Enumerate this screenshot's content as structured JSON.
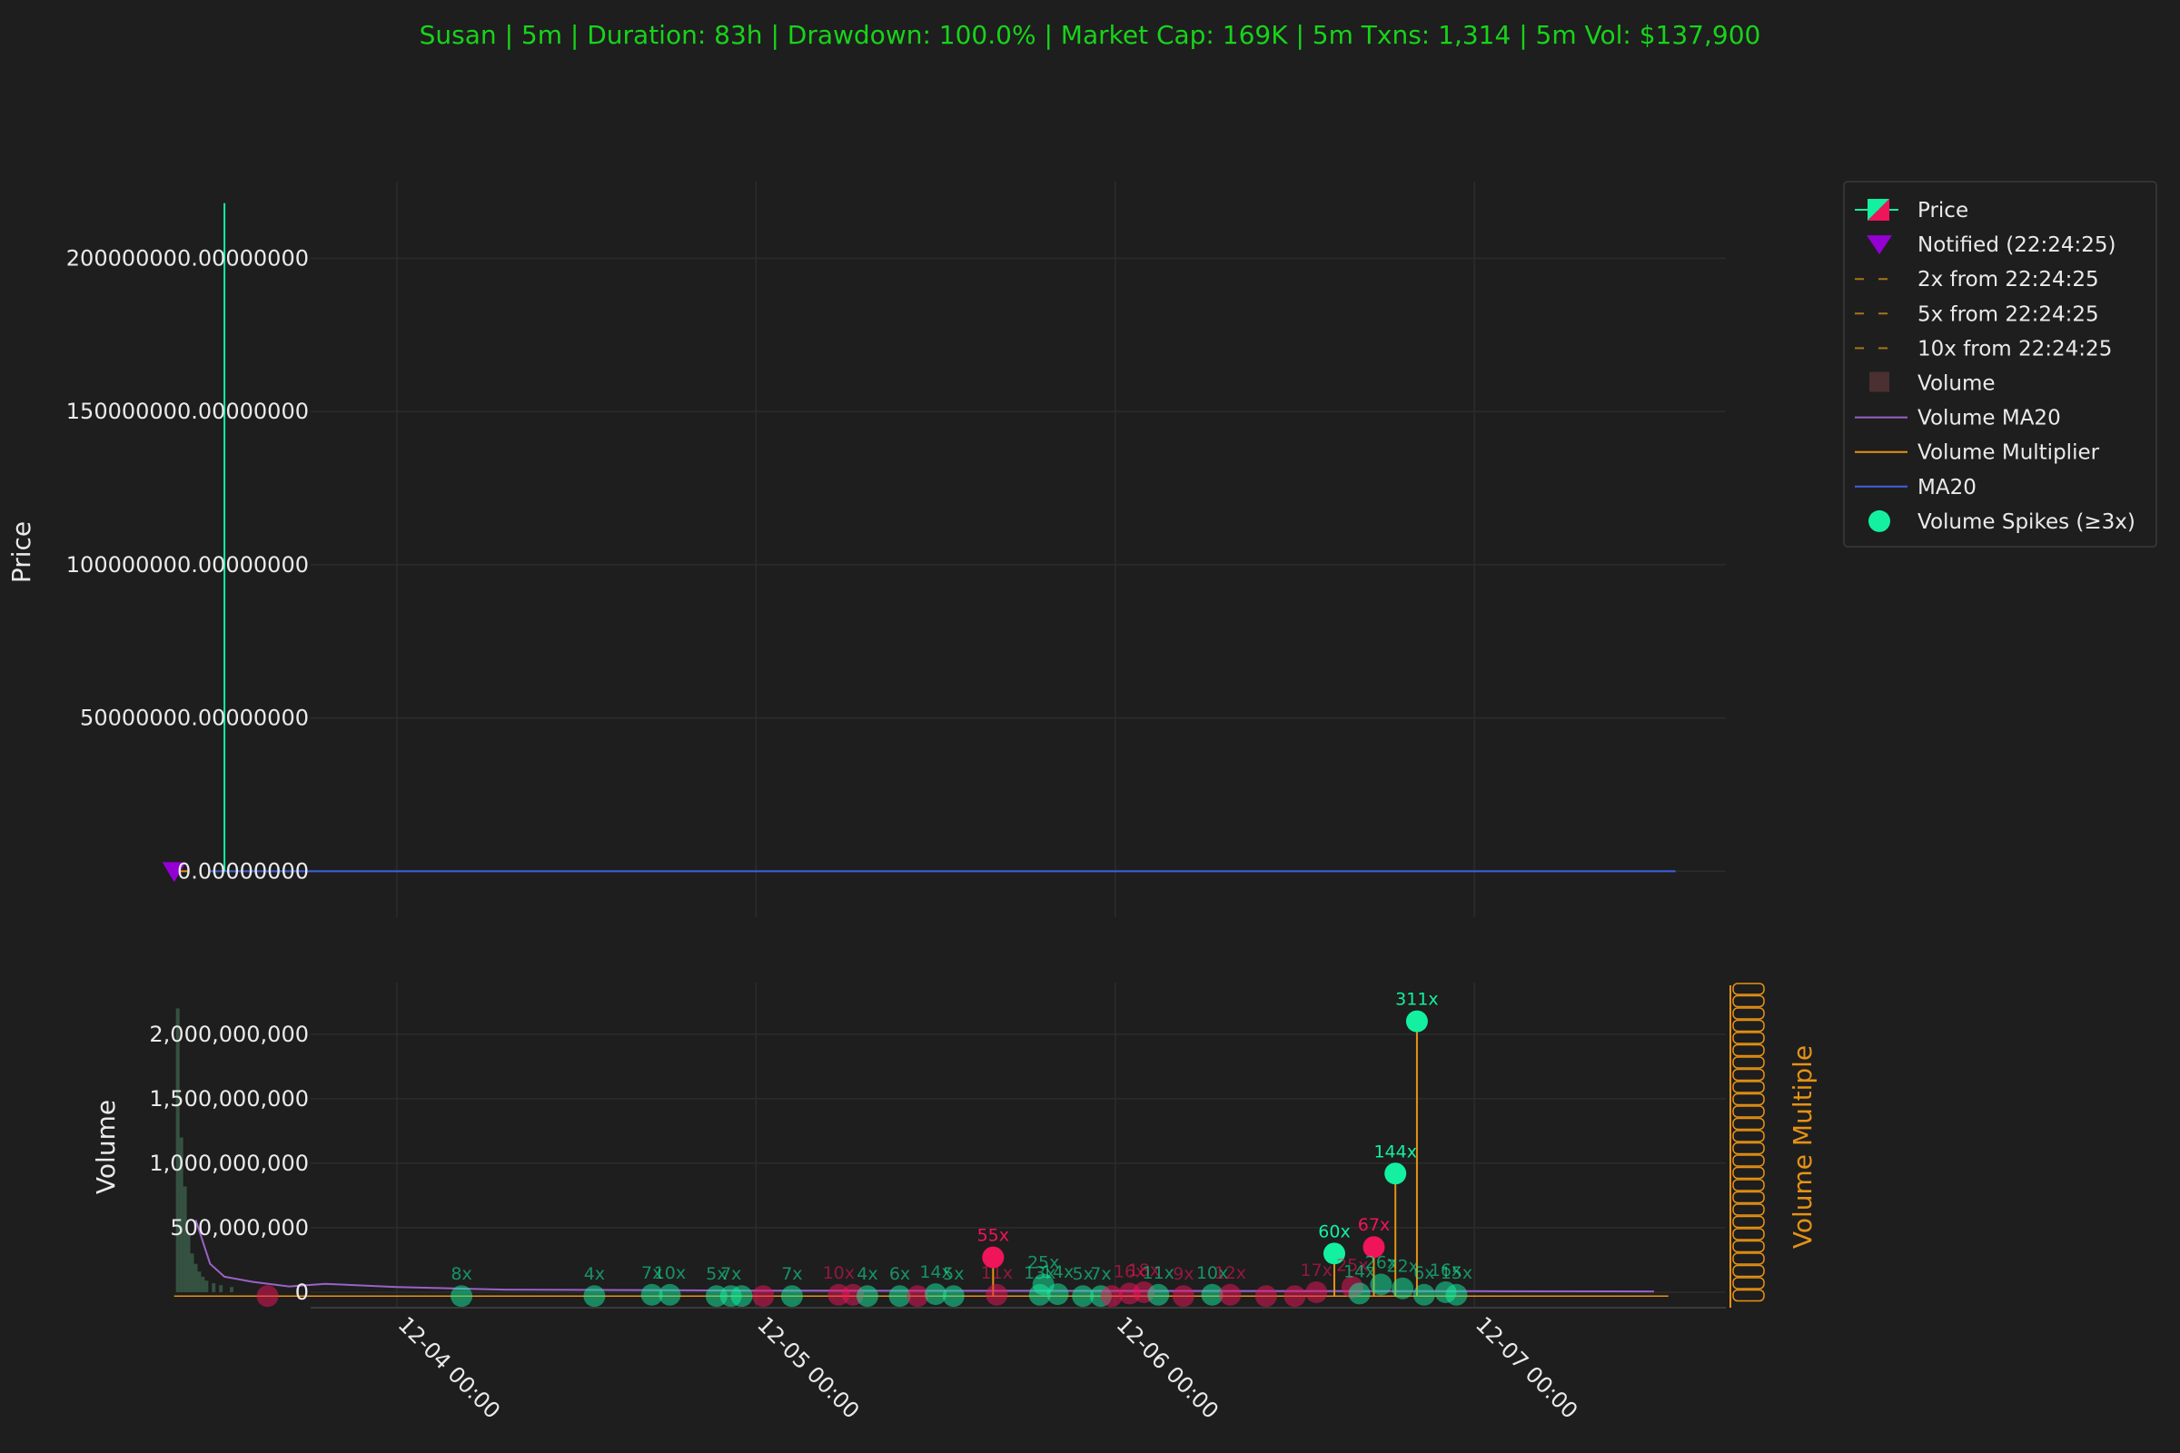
{
  "title": "Susan | 5m | Duration: 83h | Drawdown: 100.0% | Market Cap: 169K | 5m Txns: 1,314 | 5m Vol: $137,900",
  "colors": {
    "background": "#1e1e1e",
    "title": "#18d31a",
    "up": "#13f0a0",
    "down": "#f0145a",
    "ma20": "#4060e0",
    "volume_ma20": "#9a62c8",
    "volume_multiplier": "#e69215",
    "notified": "#9400d3",
    "grid": "#2c2c2c"
  },
  "legend": [
    {
      "label": "Price",
      "icon": "candle-icon"
    },
    {
      "label": "Notified (22:24:25)",
      "icon": "triangle-down-icon"
    },
    {
      "label": "2x from 22:24:25",
      "icon": "dashed-line-icon"
    },
    {
      "label": "5x from 22:24:25",
      "icon": "dashed-line-icon"
    },
    {
      "label": "10x from 22:24:25",
      "icon": "dashed-line-icon"
    },
    {
      "label": "Volume",
      "icon": "square-icon"
    },
    {
      "label": "Volume MA20",
      "icon": "line-icon"
    },
    {
      "label": "Volume Multiplier",
      "icon": "line-icon"
    },
    {
      "label": "MA20",
      "icon": "line-icon"
    },
    {
      "label": "Volume Spikes (≥3x)",
      "icon": "circle-icon"
    }
  ],
  "chart_data": [
    {
      "type": "line",
      "panel": "price",
      "ylabel": "Price",
      "ylim": [
        -15000000,
        225000000
      ],
      "y_ticks": [
        {
          "value": 0,
          "label": "0.00000000"
        },
        {
          "value": 50000000,
          "label": "50000000.00000000"
        },
        {
          "value": 100000000,
          "label": "100000000.00000000"
        },
        {
          "value": 150000000,
          "label": "150000000.00000000"
        },
        {
          "value": 200000000,
          "label": "200000000.00000000"
        }
      ],
      "xlim": [
        -0.24,
        3.7
      ],
      "x_axis": "days after 12-04 00:00",
      "grid": true,
      "price_spike": {
        "x": -0.48,
        "high": 218000000,
        "low": 0
      },
      "ma20": {
        "x_start": -0.52,
        "x_end": 3.56,
        "value": 0
      },
      "notified": {
        "x": -0.62,
        "y": 0,
        "label": "Notified (22:24:25)"
      }
    },
    {
      "type": "bar",
      "panel": "volume",
      "ylabel": "Volume",
      "y2label": "Volume Multiple",
      "ylim": [
        -120000000,
        2400000000
      ],
      "y_ticks": [
        {
          "value": 0,
          "label": "0"
        },
        {
          "value": 500000000,
          "label": "500,000,000"
        },
        {
          "value": 1000000000,
          "label": "1,000,000,000"
        },
        {
          "value": 1500000000,
          "label": "1,500,000,000"
        },
        {
          "value": 2000000000,
          "label": "2,000,000,000"
        }
      ],
      "x_ticks": [
        {
          "value": 0,
          "label": "12-04 00:00"
        },
        {
          "value": 1,
          "label": "12-05 00:00"
        },
        {
          "value": 2,
          "label": "12-06 00:00"
        },
        {
          "value": 3,
          "label": "12-07 00:00"
        }
      ],
      "early_volume": [
        {
          "x": -0.61,
          "v": 2200000000
        },
        {
          "x": -0.6,
          "v": 1200000000
        },
        {
          "x": -0.59,
          "v": 820000000
        },
        {
          "x": -0.58,
          "v": 450000000
        },
        {
          "x": -0.57,
          "v": 300000000
        },
        {
          "x": -0.56,
          "v": 220000000
        },
        {
          "x": -0.55,
          "v": 160000000
        },
        {
          "x": -0.54,
          "v": 120000000
        },
        {
          "x": -0.53,
          "v": 90000000
        },
        {
          "x": -0.51,
          "v": 70000000
        },
        {
          "x": -0.49,
          "v": 55000000
        },
        {
          "x": -0.46,
          "v": 40000000
        }
      ],
      "volume_ma20": [
        {
          "x": -0.56,
          "v": 560000000
        },
        {
          "x": -0.52,
          "v": 220000000
        },
        {
          "x": -0.48,
          "v": 120000000
        },
        {
          "x": -0.4,
          "v": 80000000
        },
        {
          "x": -0.3,
          "v": 45000000
        },
        {
          "x": -0.2,
          "v": 65000000
        },
        {
          "x": 0,
          "v": 40000000
        },
        {
          "x": 0.3,
          "v": 20000000
        },
        {
          "x": 1.0,
          "v": 12000000
        },
        {
          "x": 2.0,
          "v": 10000000
        },
        {
          "x": 3.0,
          "v": 8000000
        },
        {
          "x": 3.5,
          "v": 6000000
        }
      ],
      "spikes": [
        {
          "x": -0.36,
          "v": -30000000,
          "dir": "down",
          "label": ""
        },
        {
          "x": 0.18,
          "v": -30000000,
          "dir": "up",
          "label": "8x"
        },
        {
          "x": 0.55,
          "v": -30000000,
          "dir": "up",
          "label": "4x"
        },
        {
          "x": 0.71,
          "v": -20000000,
          "dir": "up",
          "label": "7x"
        },
        {
          "x": 0.76,
          "v": -20000000,
          "dir": "up",
          "label": "10x"
        },
        {
          "x": 0.89,
          "v": -30000000,
          "dir": "up",
          "label": "5x"
        },
        {
          "x": 0.93,
          "v": -30000000,
          "dir": "up",
          "label": "7x"
        },
        {
          "x": 0.96,
          "v": -30000000,
          "dir": "up",
          "label": ""
        },
        {
          "x": 1.02,
          "v": -30000000,
          "dir": "down",
          "label": ""
        },
        {
          "x": 1.1,
          "v": -30000000,
          "dir": "up",
          "label": "7x"
        },
        {
          "x": 1.23,
          "v": -20000000,
          "dir": "down",
          "label": "10x"
        },
        {
          "x": 1.27,
          "v": -20000000,
          "dir": "down",
          "label": ""
        },
        {
          "x": 1.31,
          "v": -30000000,
          "dir": "up",
          "label": "4x"
        },
        {
          "x": 1.4,
          "v": -30000000,
          "dir": "up",
          "label": "6x"
        },
        {
          "x": 1.45,
          "v": -30000000,
          "dir": "down",
          "label": ""
        },
        {
          "x": 1.5,
          "v": -15000000,
          "dir": "up",
          "label": "14x"
        },
        {
          "x": 1.55,
          "v": -30000000,
          "dir": "up",
          "label": "5x"
        },
        {
          "x": 1.66,
          "v": 270000000,
          "dir": "down",
          "label": "55x"
        },
        {
          "x": 1.67,
          "v": -20000000,
          "dir": "down",
          "label": "11x"
        },
        {
          "x": 1.8,
          "v": 60000000,
          "dir": "up",
          "label": "25x"
        },
        {
          "x": 1.79,
          "v": -20000000,
          "dir": "up",
          "label": "13x"
        },
        {
          "x": 1.84,
          "v": -15000000,
          "dir": "up",
          "label": "14x"
        },
        {
          "x": 1.91,
          "v": -30000000,
          "dir": "up",
          "label": "5x"
        },
        {
          "x": 1.96,
          "v": -30000000,
          "dir": "up",
          "label": "7x"
        },
        {
          "x": 1.99,
          "v": -30000000,
          "dir": "down",
          "label": ""
        },
        {
          "x": 2.04,
          "v": -10000000,
          "dir": "down",
          "label": "16x"
        },
        {
          "x": 2.08,
          "v": 0,
          "dir": "down",
          "label": "18x"
        },
        {
          "x": 2.12,
          "v": -20000000,
          "dir": "up",
          "label": "11x"
        },
        {
          "x": 2.19,
          "v": -30000000,
          "dir": "down",
          "label": "9x"
        },
        {
          "x": 2.27,
          "v": -20000000,
          "dir": "up",
          "label": "10x"
        },
        {
          "x": 2.32,
          "v": -20000000,
          "dir": "down",
          "label": "12x"
        },
        {
          "x": 2.42,
          "v": -30000000,
          "dir": "down",
          "label": ""
        },
        {
          "x": 2.5,
          "v": -30000000,
          "dir": "down",
          "label": ""
        },
        {
          "x": 2.56,
          "v": 0,
          "dir": "down",
          "label": "17x"
        },
        {
          "x": 2.61,
          "v": 300000000,
          "dir": "up",
          "label": "60x"
        },
        {
          "x": 2.66,
          "v": 40000000,
          "dir": "down",
          "label": "25x"
        },
        {
          "x": 2.68,
          "v": -10000000,
          "dir": "up",
          "label": "14x"
        },
        {
          "x": 2.72,
          "v": 350000000,
          "dir": "down",
          "label": "67x"
        },
        {
          "x": 2.74,
          "v": 60000000,
          "dir": "up",
          "label": "26x"
        },
        {
          "x": 2.78,
          "v": 920000000,
          "dir": "up",
          "label": "144x"
        },
        {
          "x": 2.8,
          "v": 30000000,
          "dir": "up",
          "label": "22x"
        },
        {
          "x": 2.84,
          "v": 2100000000,
          "dir": "up",
          "label": "311x"
        },
        {
          "x": 2.86,
          "v": -20000000,
          "dir": "up",
          "label": "6x"
        },
        {
          "x": 2.92,
          "v": 0,
          "dir": "up",
          "label": "16x"
        },
        {
          "x": 2.95,
          "v": -20000000,
          "dir": "up",
          "label": "15x"
        }
      ]
    }
  ]
}
